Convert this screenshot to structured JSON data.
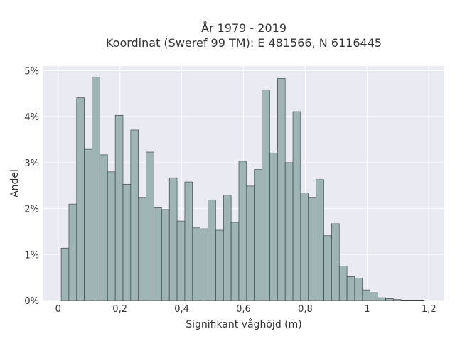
{
  "chart_data": {
    "type": "bar",
    "title": "År 1979 - 2019",
    "subtitle": "Koordinat (Sweref 99 TM): E 481566, N 6116445",
    "xlabel": "Signifikant våghöjd (m)",
    "ylabel": "Andel",
    "xlim": [
      -0.05,
      1.25
    ],
    "ylim": [
      0,
      5.1
    ],
    "x_ticks": [
      {
        "value": 0,
        "label": "0"
      },
      {
        "value": 0.2,
        "label": "0,2"
      },
      {
        "value": 0.4,
        "label": "0,4"
      },
      {
        "value": 0.6,
        "label": "0,6"
      },
      {
        "value": 0.8,
        "label": "0,8"
      },
      {
        "value": 1.0,
        "label": "1"
      },
      {
        "value": 1.2,
        "label": "1,2"
      }
    ],
    "y_ticks": [
      {
        "value": 0,
        "label": "0%"
      },
      {
        "value": 1,
        "label": "1%"
      },
      {
        "value": 2,
        "label": "2%"
      },
      {
        "value": 3,
        "label": "3%"
      },
      {
        "value": 4,
        "label": "4%"
      },
      {
        "value": 5,
        "label": "5%"
      }
    ],
    "grid": true,
    "bin_start": 0.01,
    "bin_width": 0.025,
    "values": [
      1.14,
      2.1,
      4.41,
      3.29,
      4.86,
      3.17,
      2.8,
      4.03,
      2.53,
      3.71,
      2.24,
      3.23,
      2.02,
      1.98,
      2.67,
      1.73,
      2.58,
      1.58,
      1.56,
      2.19,
      1.53,
      2.29,
      1.7,
      3.03,
      2.49,
      2.85,
      4.58,
      3.21,
      4.83,
      3.0,
      4.11,
      2.34,
      2.23,
      2.63,
      1.41,
      1.67,
      0.75,
      0.52,
      0.49,
      0.23,
      0.17,
      0.06,
      0.04,
      0.02,
      0.01,
      0.01,
      0.01
    ],
    "colors": {
      "bar_fill": "#9fb4b4",
      "bar_stroke": "#2f3535",
      "plot_bg": "#eaeaf2",
      "grid": "#ffffff"
    }
  }
}
